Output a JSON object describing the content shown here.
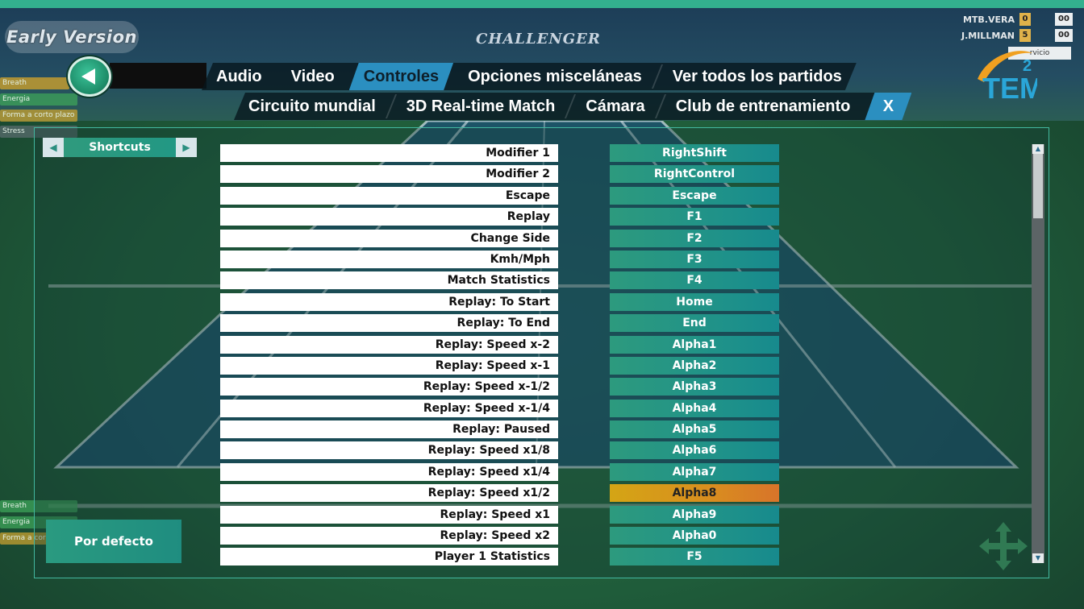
{
  "badge": {
    "early_version": "Early Version"
  },
  "banner": {
    "sponsor": "CHALLENGER"
  },
  "scoreboard": {
    "players": [
      {
        "name": "MTB.VERA",
        "set": "0",
        "points": "00"
      },
      {
        "name": "J.MILLMAN",
        "set": "5",
        "points": "00"
      }
    ],
    "serve_label": "rvicio"
  },
  "logo": {
    "text": "TEM",
    "superscript": "2"
  },
  "stats_top": [
    {
      "label": "Breath",
      "color": "#d7a52a",
      "level": 0.9
    },
    {
      "label": "Energia",
      "color": "#3ea35a",
      "level": 1.0
    },
    {
      "label": "Forma a corto plazo",
      "color": "#c8a030",
      "level": 1.0
    },
    {
      "label": "Stress",
      "color": "#5a6b6e",
      "level": 1.0
    }
  ],
  "stats_bottom": [
    {
      "label": "Breath",
      "color": "#3ea35a",
      "level": 1.0
    },
    {
      "label": "Energia",
      "color": "#3ea35a",
      "level": 1.0
    },
    {
      "label": "Forma a cor",
      "color": "#c8a030",
      "level": 1.0
    }
  ],
  "nav": {
    "row1": [
      {
        "label": "Audio",
        "active": false
      },
      {
        "label": "Video",
        "active": false
      },
      {
        "label": "Controles",
        "active": true
      },
      {
        "label": "Opciones misceláneas",
        "active": false
      },
      {
        "label": "Ver todos los partidos",
        "active": false
      }
    ],
    "row2": [
      {
        "label": "Circuito mundial"
      },
      {
        "label": "3D Real-time Match"
      },
      {
        "label": "Cámara"
      },
      {
        "label": "Club de entrenamiento"
      }
    ],
    "close_label": "X"
  },
  "category": {
    "label": "Shortcuts"
  },
  "default_button": "Por defecto",
  "shortcuts": [
    {
      "action": "Modifier 1",
      "key": "RightShift"
    },
    {
      "action": "Modifier 2",
      "key": "RightControl"
    },
    {
      "action": "Escape",
      "key": "Escape"
    },
    {
      "action": "Replay",
      "key": "F1"
    },
    {
      "action": "Change Side",
      "key": "F2"
    },
    {
      "action": "Kmh/Mph",
      "key": "F3"
    },
    {
      "action": "Match Statistics",
      "key": "F4"
    },
    {
      "action": "Replay: To Start",
      "key": "Home"
    },
    {
      "action": "Replay: To End",
      "key": "End"
    },
    {
      "action": "Replay: Speed x-2",
      "key": "Alpha1"
    },
    {
      "action": "Replay: Speed x-1",
      "key": "Alpha2"
    },
    {
      "action": "Replay: Speed x-1/2",
      "key": "Alpha3"
    },
    {
      "action": "Replay: Speed x-1/4",
      "key": "Alpha4"
    },
    {
      "action": "Replay: Paused",
      "key": "Alpha5"
    },
    {
      "action": "Replay: Speed x1/8",
      "key": "Alpha6"
    },
    {
      "action": "Replay: Speed x1/4",
      "key": "Alpha7"
    },
    {
      "action": "Replay: Speed x1/2",
      "key": "Alpha8",
      "selected": true
    },
    {
      "action": "Replay: Speed x1",
      "key": "Alpha9"
    },
    {
      "action": "Replay: Speed x2",
      "key": "Alpha0"
    },
    {
      "action": "Player 1 Statistics",
      "key": "F5"
    }
  ],
  "colors": {
    "accent_teal": "#2d9a7e",
    "active_tab": "#2b8fc0",
    "selected_key": "#d4a515",
    "panel_border": "#43b8a0"
  },
  "icons": {
    "back": "left-arrow-icon",
    "category_prev": "left-triangle-icon",
    "category_next": "right-triangle-icon",
    "scroll_up": "up-triangle-icon",
    "scroll_down": "down-triangle-icon",
    "dpad": "four-arrows-icon"
  }
}
